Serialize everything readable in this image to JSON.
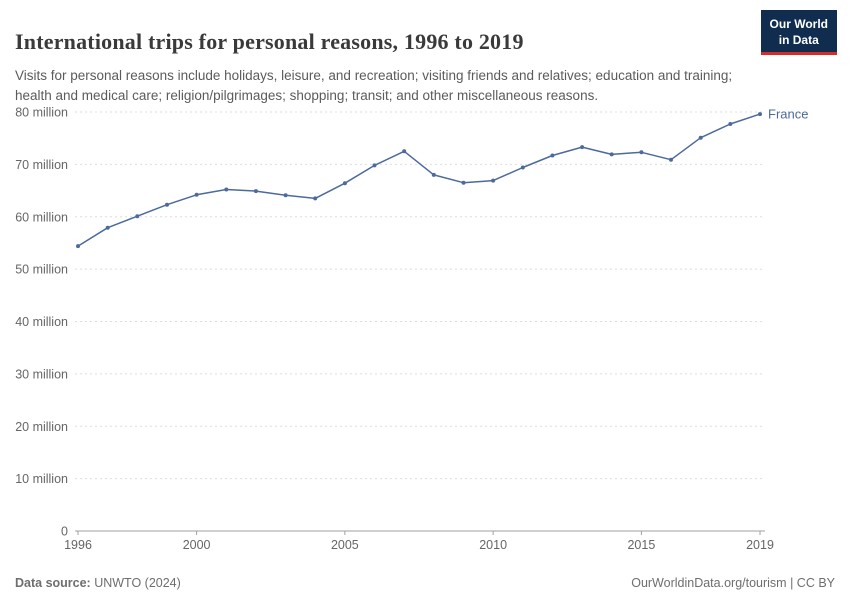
{
  "header": {
    "title": "International trips for personal reasons, 1996 to 2019",
    "subtitle": "Visits for personal reasons include holidays, leisure, and recreation; visiting friends and relatives; education and training; health and medical care; religion/pilgrimages; shopping; transit; and other miscellaneous reasons.",
    "logo_line1": "Our World",
    "logo_line2": "in Data"
  },
  "chart_data": {
    "type": "line",
    "title": "International trips for personal reasons, 1996 to 2019",
    "unit": "million trips",
    "x": [
      1996,
      1997,
      1998,
      1999,
      2000,
      2001,
      2002,
      2003,
      2004,
      2005,
      2006,
      2007,
      2008,
      2009,
      2010,
      2011,
      2012,
      2013,
      2014,
      2015,
      2016,
      2017,
      2018,
      2019
    ],
    "series": [
      {
        "name": "France",
        "color": "#4c6a9c",
        "values": [
          54.4,
          57.9,
          60.1,
          62.3,
          64.2,
          65.2,
          64.9,
          64.1,
          63.5,
          66.4,
          69.8,
          72.5,
          68.0,
          66.5,
          66.9,
          69.4,
          71.7,
          73.3,
          71.9,
          72.3,
          70.9,
          75.1,
          77.7,
          79.6
        ]
      }
    ],
    "ylim": [
      0,
      80
    ],
    "yticks": [
      {
        "value": 0,
        "label": "0"
      },
      {
        "value": 10,
        "label": "10 million"
      },
      {
        "value": 20,
        "label": "20 million"
      },
      {
        "value": 30,
        "label": "30 million"
      },
      {
        "value": 40,
        "label": "40 million"
      },
      {
        "value": 50,
        "label": "50 million"
      },
      {
        "value": 60,
        "label": "60 million"
      },
      {
        "value": 70,
        "label": "70 million"
      },
      {
        "value": 80,
        "label": "80 million"
      }
    ],
    "xticks": [
      1996,
      2000,
      2005,
      2010,
      2015,
      2019
    ],
    "grid": "horizontal-dashed",
    "legend": "end-of-line-label"
  },
  "footer": {
    "source_label": "Data source:",
    "source_text": " UNWTO (2024)",
    "citation": "OurWorldinData.org/tourism | CC BY"
  },
  "colors": {
    "series": "#4c6a9c",
    "grid": "#dddddd",
    "axis": "#a0a0a0",
    "tick_text": "#666666",
    "logo_bg": "#102d4f",
    "logo_red": "#d42b2b"
  }
}
